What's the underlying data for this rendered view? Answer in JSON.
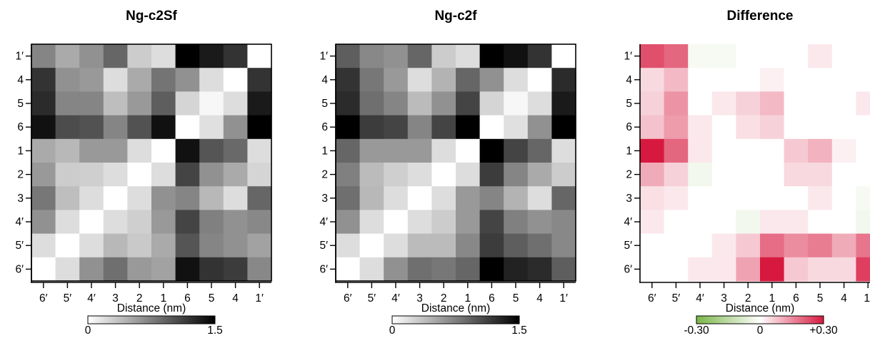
{
  "colors": {
    "gray_low": "#ffffff",
    "gray_high": "#000000",
    "diff_neg": "#7ab648",
    "diff_mid": "#ffffff",
    "diff_pos": "#d7193f"
  },
  "chart_data": [
    {
      "type": "heatmap",
      "title": "Ng-c2Sf",
      "row_labels": [
        "1′",
        "4",
        "5",
        "6",
        "1",
        "2",
        "3",
        "4′",
        "5′",
        "6′"
      ],
      "col_labels": [
        "6′",
        "5′",
        "4′",
        "3",
        "2",
        "1",
        "6",
        "5",
        "4",
        "1′"
      ],
      "colorbar": {
        "label": "Distance (nm)",
        "min_label": "0",
        "max_label": "1.5",
        "range": [
          0,
          1.5
        ],
        "scale": "white-to-black"
      },
      "values": [
        [
          0.72,
          0.5,
          0.65,
          0.9,
          0.3,
          0.2,
          1.5,
          1.35,
          1.2,
          0.0
        ],
        [
          1.2,
          0.65,
          0.6,
          0.2,
          0.5,
          0.82,
          0.65,
          0.2,
          0.0,
          1.2
        ],
        [
          1.25,
          0.72,
          0.72,
          0.38,
          0.6,
          0.95,
          0.25,
          0.05,
          0.2,
          1.35
        ],
        [
          1.4,
          1.05,
          1.02,
          0.72,
          1.02,
          1.4,
          0.0,
          0.18,
          0.65,
          1.5
        ],
        [
          0.5,
          0.42,
          0.6,
          0.6,
          0.2,
          0.0,
          1.4,
          1.0,
          0.88,
          0.2
        ],
        [
          0.6,
          0.3,
          0.28,
          0.2,
          0.0,
          0.2,
          1.1,
          0.65,
          0.5,
          0.25
        ],
        [
          0.8,
          0.38,
          0.2,
          0.0,
          0.2,
          0.65,
          0.72,
          0.42,
          0.2,
          0.9
        ],
        [
          0.65,
          0.2,
          0.0,
          0.2,
          0.28,
          0.6,
          1.1,
          0.75,
          0.65,
          0.7
        ],
        [
          0.2,
          0.0,
          0.2,
          0.42,
          0.32,
          0.5,
          1.0,
          0.72,
          0.65,
          0.55
        ],
        [
          0.0,
          0.2,
          0.65,
          0.85,
          0.6,
          0.55,
          1.4,
          1.2,
          1.15,
          0.7
        ]
      ]
    },
    {
      "type": "heatmap",
      "title": "Ng-c2f",
      "row_labels": [
        "1′",
        "4",
        "5",
        "6",
        "1",
        "2",
        "3",
        "4′",
        "5′",
        "6′"
      ],
      "col_labels": [
        "6′",
        "5′",
        "4′",
        "3",
        "2",
        "1",
        "6",
        "5",
        "4",
        "1′"
      ],
      "colorbar": {
        "label": "Distance (nm)",
        "min_label": "0",
        "max_label": "1.5",
        "range": [
          0,
          1.5
        ],
        "scale": "white-to-black"
      },
      "values": [
        [
          0.95,
          0.7,
          0.65,
          0.9,
          0.3,
          0.2,
          1.5,
          1.4,
          1.2,
          0.0
        ],
        [
          1.2,
          0.8,
          0.6,
          0.2,
          0.45,
          0.9,
          0.65,
          0.2,
          0.0,
          1.25
        ],
        [
          1.25,
          0.85,
          0.72,
          0.4,
          0.65,
          1.1,
          0.25,
          0.05,
          0.2,
          1.35
        ],
        [
          1.5,
          1.15,
          1.1,
          0.72,
          1.1,
          1.5,
          0.0,
          0.18,
          0.65,
          1.5
        ],
        [
          0.9,
          0.6,
          0.6,
          0.6,
          0.2,
          0.0,
          1.5,
          1.1,
          0.9,
          0.2
        ],
        [
          0.75,
          0.4,
          0.28,
          0.2,
          0.0,
          0.2,
          1.15,
          0.72,
          0.5,
          0.3
        ],
        [
          0.85,
          0.42,
          0.2,
          0.0,
          0.2,
          0.6,
          0.72,
          0.45,
          0.2,
          0.9
        ],
        [
          0.65,
          0.2,
          0.0,
          0.2,
          0.3,
          0.6,
          1.1,
          0.75,
          0.65,
          0.7
        ],
        [
          0.2,
          0.0,
          0.2,
          0.4,
          0.4,
          0.7,
          1.15,
          0.95,
          0.85,
          0.7
        ],
        [
          0.0,
          0.2,
          0.65,
          0.85,
          0.8,
          0.9,
          1.5,
          1.3,
          1.25,
          0.95
        ]
      ]
    },
    {
      "type": "heatmap",
      "title": "Difference",
      "row_labels": [
        "1′",
        "4",
        "5",
        "6",
        "1",
        "2",
        "3",
        "4′",
        "5′",
        "6′"
      ],
      "col_labels": [
        "6′",
        "5′",
        "4′",
        "3",
        "2",
        "1",
        "6",
        "5",
        "4",
        "1′"
      ],
      "colorbar": {
        "label": "Distance (nm)",
        "min_label": "-0.30",
        "mid_label": "0",
        "max_label": "+0.30",
        "range": [
          -0.3,
          0.3
        ],
        "scale": "green-white-red"
      },
      "values": [
        [
          0.23,
          0.2,
          -0.02,
          -0.02,
          0.0,
          0.0,
          0.0,
          0.03,
          0.0,
          0.0
        ],
        [
          0.05,
          0.09,
          0.0,
          0.0,
          0.0,
          0.02,
          0.0,
          0.0,
          0.0,
          0.0
        ],
        [
          0.06,
          0.14,
          0.0,
          0.03,
          0.06,
          0.09,
          0.0,
          0.0,
          0.0,
          0.03
        ],
        [
          0.08,
          0.13,
          0.03,
          0.0,
          0.04,
          0.06,
          0.0,
          0.0,
          0.0,
          0.0
        ],
        [
          0.31,
          0.2,
          0.03,
          0.0,
          0.0,
          0.0,
          0.07,
          0.1,
          0.02,
          0.0
        ],
        [
          0.11,
          0.06,
          -0.03,
          0.0,
          0.0,
          0.0,
          0.05,
          0.05,
          0.0,
          0.0
        ],
        [
          0.04,
          0.03,
          0.0,
          0.0,
          0.0,
          0.0,
          0.0,
          0.03,
          0.0,
          -0.02
        ],
        [
          0.03,
          0.0,
          0.0,
          0.0,
          -0.03,
          0.03,
          0.03,
          0.0,
          0.0,
          -0.03
        ],
        [
          0.0,
          0.0,
          0.0,
          0.03,
          0.07,
          0.19,
          0.15,
          0.17,
          0.11,
          0.18
        ],
        [
          0.0,
          0.0,
          0.03,
          0.03,
          0.12,
          0.3,
          0.07,
          0.05,
          0.05,
          0.25
        ]
      ]
    }
  ]
}
